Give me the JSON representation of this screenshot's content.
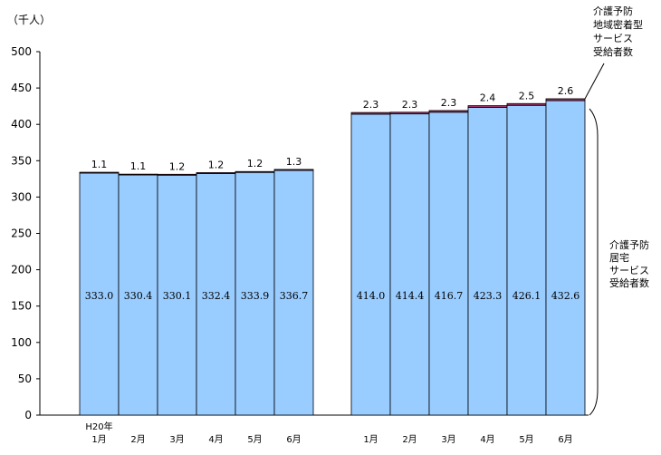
{
  "chart_data": {
    "type": "bar",
    "stacked": true,
    "unit_label": "（千人）",
    "ylim": [
      0,
      500
    ],
    "yticks": [
      0,
      50,
      100,
      150,
      200,
      250,
      300,
      350,
      400,
      450,
      500
    ],
    "groups": [
      {
        "year_label": "H20年",
        "categories": [
          "1月",
          "2月",
          "3月",
          "4月",
          "5月",
          "6月"
        ],
        "residential": [
          333.0,
          330.4,
          330.1,
          332.4,
          333.9,
          336.7
        ],
        "community": [
          1.1,
          1.1,
          1.2,
          1.2,
          1.2,
          1.3
        ]
      },
      {
        "year_label": "",
        "categories": [
          "1月",
          "2月",
          "3月",
          "4月",
          "5月",
          "6月"
        ],
        "residential": [
          414.0,
          414.4,
          416.7,
          423.3,
          426.1,
          432.6
        ],
        "community": [
          2.3,
          2.3,
          2.3,
          2.4,
          2.5,
          2.6
        ]
      }
    ],
    "series": [
      {
        "key": "residential",
        "name_lines": [
          "介護予防",
          "居宅",
          "サービス",
          "受給者数"
        ],
        "color": "#99ccff"
      },
      {
        "key": "community",
        "name_lines": [
          "介護予防",
          "地域密着型",
          "サービス",
          "受給者数"
        ],
        "color": "#993366"
      }
    ]
  }
}
